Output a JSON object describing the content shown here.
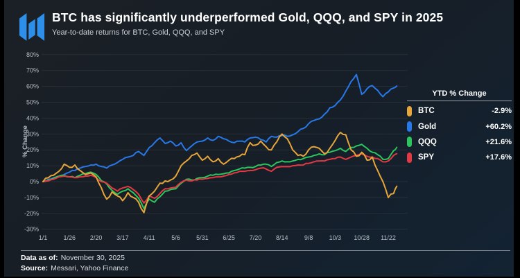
{
  "header": {
    "title": "BTC has significantly underperformed Gold, QQQ, and SPY in 2025",
    "subtitle": "Year-to-date returns for BTC, Gold, QQQ, and SPY"
  },
  "legend": {
    "header": "YTD % Change",
    "items": [
      {
        "name": "BTC",
        "value": "-2.9%",
        "color": "#E7A63A"
      },
      {
        "name": "Gold",
        "value": "+60.2%",
        "color": "#2778E8"
      },
      {
        "name": "QQQ",
        "value": "+21.6%",
        "color": "#2BC55E"
      },
      {
        "name": "SPY",
        "value": "+17.6%",
        "color": "#E43843"
      }
    ]
  },
  "footer": {
    "data_as_of_label": "Data as of:",
    "data_as_of_value": "November 30, 2025",
    "source_label": "Source:",
    "source_value": "Messari, Yahoo Finance"
  },
  "colors": {
    "background_top": "#1b2026",
    "background_bottom": "#132333",
    "logo_blue": "#2e8fea",
    "grid": "rgba(255,255,255,0.07)",
    "tick_text": "#b6bdc5"
  },
  "chart_data": {
    "type": "line",
    "title": "BTC has significantly underperformed Gold, QQQ, and SPY in 2025",
    "subtitle": "Year-to-date returns for BTC, Gold, QQQ, and SPY",
    "xlabel": "",
    "ylabel": "% Change",
    "ylim": [
      -30,
      80
    ],
    "grid": "horizontal",
    "legend_position": "right",
    "x_unit": "day_of_year_2025",
    "x_ticks": [
      {
        "day": 0,
        "label": "1/1"
      },
      {
        "day": 25,
        "label": "1/26"
      },
      {
        "day": 50,
        "label": "2/20"
      },
      {
        "day": 75,
        "label": "3/17"
      },
      {
        "day": 100,
        "label": "4/11"
      },
      {
        "day": 125,
        "label": "5/6"
      },
      {
        "day": 150,
        "label": "5/31"
      },
      {
        "day": 175,
        "label": "6/25"
      },
      {
        "day": 200,
        "label": "7/20"
      },
      {
        "day": 225,
        "label": "8/14"
      },
      {
        "day": 250,
        "label": "9/8"
      },
      {
        "day": 275,
        "label": "10/3"
      },
      {
        "day": 300,
        "label": "10/28"
      },
      {
        "day": 325,
        "label": "11/22"
      }
    ],
    "y_ticks": [
      {
        "value": 80,
        "label": "80%"
      },
      {
        "value": 70,
        "label": "70%"
      },
      {
        "value": 60,
        "label": "60%"
      },
      {
        "value": 50,
        "label": "50%"
      },
      {
        "value": 40,
        "label": "40%"
      },
      {
        "value": 30,
        "label": "30%"
      },
      {
        "value": 20,
        "label": "20%"
      },
      {
        "value": 10,
        "label": "10%"
      },
      {
        "value": 0,
        "label": "0%"
      },
      {
        "value": -10,
        "label": "-10%"
      },
      {
        "value": -20,
        "label": "-20%"
      },
      {
        "value": -30,
        "label": "-30%"
      }
    ],
    "days": [
      0,
      5,
      10,
      15,
      20,
      25,
      30,
      35,
      40,
      45,
      50,
      55,
      60,
      65,
      70,
      75,
      80,
      85,
      90,
      95,
      100,
      105,
      110,
      115,
      120,
      125,
      130,
      135,
      140,
      145,
      150,
      155,
      160,
      165,
      170,
      175,
      180,
      185,
      190,
      195,
      200,
      205,
      210,
      215,
      220,
      225,
      230,
      235,
      240,
      245,
      250,
      255,
      260,
      265,
      270,
      275,
      280,
      285,
      290,
      295,
      300,
      305,
      310,
      315,
      320,
      325,
      330,
      333
    ],
    "series": [
      {
        "name": "BTC",
        "color": "#E7A63A",
        "final_label": "-2.9%",
        "values": [
          0,
          2.5,
          4,
          6.5,
          11,
          9,
          10.5,
          7,
          4.5,
          5.5,
          3,
          -4,
          -11,
          -6.5,
          -9,
          -12,
          -7,
          -10,
          -13,
          -19.5,
          -9,
          -6,
          -1,
          0.5,
          1,
          3.5,
          10,
          13,
          16.5,
          18,
          13.5,
          16,
          12.5,
          14.5,
          11,
          13.5,
          14.5,
          16,
          17,
          24.5,
          23,
          25.5,
          22,
          20,
          25,
          30,
          27,
          20,
          16.5,
          16,
          20,
          22,
          21,
          17.5,
          21,
          26,
          31,
          29.5,
          20,
          16,
          18.5,
          13.5,
          15.5,
          7,
          0,
          -10,
          -7.5,
          -2.9
        ]
      },
      {
        "name": "Gold",
        "color": "#2778E8",
        "final_label": "+60.2%",
        "values": [
          0,
          1.5,
          2.5,
          3,
          4.5,
          6,
          7,
          8.5,
          9.5,
          10.5,
          11,
          9.5,
          8.5,
          10.5,
          12,
          14,
          15.5,
          16.5,
          19,
          16.5,
          21.5,
          24.5,
          27.5,
          24,
          25.5,
          22.5,
          24.5,
          19.5,
          22.5,
          25,
          25.5,
          27.5,
          26,
          28.5,
          27,
          25.5,
          24.5,
          25.5,
          25,
          27.5,
          28,
          26.5,
          25,
          28.5,
          28,
          29,
          28.5,
          29.5,
          31.5,
          33.5,
          36.5,
          38.5,
          39.5,
          42.5,
          46.5,
          48,
          51.5,
          57,
          63,
          67.5,
          55,
          58.5,
          60.5,
          57.5,
          53.5,
          56.5,
          59,
          60.2
        ]
      },
      {
        "name": "QQQ",
        "color": "#2BC55E",
        "final_label": "+21.6%",
        "values": [
          0,
          1,
          2,
          3.5,
          4,
          3,
          2.5,
          4,
          5,
          6,
          4.5,
          0.5,
          -1.5,
          -5.5,
          -8,
          -6,
          -4.5,
          -7,
          -10.5,
          -17,
          -11,
          -13,
          -9.5,
          -6,
          -5,
          -4.5,
          -1,
          1.5,
          1,
          2,
          2.5,
          3.5,
          4,
          4.5,
          5,
          5.5,
          7,
          8,
          8.5,
          9,
          9.5,
          10.5,
          11,
          9.5,
          12,
          13,
          12.5,
          13,
          14,
          14.5,
          15.5,
          16.5,
          17.5,
          17,
          18.5,
          19.5,
          21,
          19,
          21.5,
          22.5,
          23.5,
          21,
          18.5,
          17,
          14,
          14.5,
          19.5,
          21.6
        ]
      },
      {
        "name": "SPY",
        "color": "#E43843",
        "final_label": "+17.6%",
        "values": [
          0,
          0.5,
          1.5,
          3,
          3.5,
          3,
          2.5,
          3,
          3.5,
          4,
          2.5,
          0,
          -1,
          -4,
          -6,
          -4,
          -3,
          -5,
          -8,
          -13.5,
          -9,
          -10.5,
          -7.5,
          -4.5,
          -4,
          -3.5,
          -0.5,
          1,
          0.5,
          1,
          1.5,
          2,
          2.5,
          3,
          3.5,
          4.5,
          5.5,
          6.5,
          6.5,
          7,
          7.5,
          8.5,
          8,
          6.5,
          9,
          9.5,
          9.5,
          10,
          10.5,
          10.5,
          11.5,
          12.5,
          13,
          13,
          14,
          14.5,
          15.5,
          14,
          15.5,
          16.5,
          17.5,
          16,
          15.5,
          14.5,
          12.5,
          13,
          16.5,
          17.6
        ]
      }
    ]
  }
}
